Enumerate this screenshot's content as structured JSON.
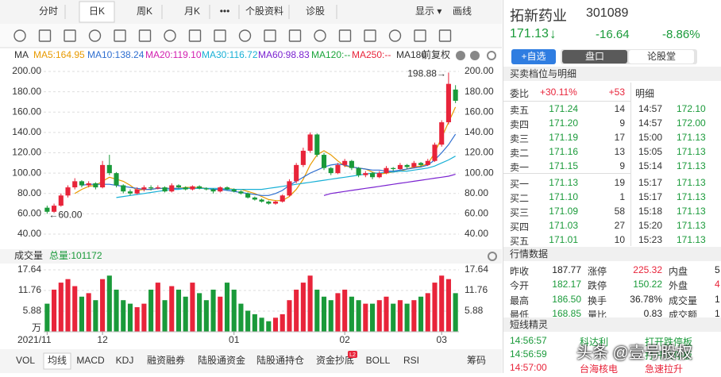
{
  "toolbar": {
    "tabs": [
      "分时",
      "日K",
      "周K",
      "月K",
      "•••",
      "个股资料",
      "诊股"
    ],
    "display": "显示 ▾",
    "draw": "画线"
  },
  "kline": {
    "ma_label": "MA",
    "ma_legend": [
      {
        "label": "MA5:164.95",
        "color": "#e89a00"
      },
      {
        "label": "MA10:138.24",
        "color": "#2f6fd0"
      },
      {
        "label": "MA20:119.10",
        "color": "#d21fb0"
      },
      {
        "label": "MA30:116.72",
        "color": "#18b0d6"
      },
      {
        "label": "MA60:98.83",
        "color": "#7a22d0"
      },
      {
        "label": "MA120:--",
        "color": "#1aa43a"
      },
      {
        "label": "MA250:--",
        "color": "#e8243a"
      },
      {
        "label": "MA180",
        "color": "#333333"
      }
    ],
    "adjust": "前复权",
    "ylim": [
      40,
      200
    ],
    "yticks": [
      {
        "value": 200,
        "label": "200.00"
      },
      {
        "value": 180,
        "label": "180.00"
      },
      {
        "value": 160,
        "label": "160.00"
      },
      {
        "value": 140,
        "label": "140.00"
      },
      {
        "value": 120,
        "label": "120.00"
      },
      {
        "value": 100,
        "label": "100.00"
      },
      {
        "value": 80,
        "label": "80.00"
      },
      {
        "value": 60,
        "label": "60.00"
      },
      {
        "value": 40,
        "label": "40.00"
      }
    ],
    "high_note": "198.88→",
    "low_note": "←60.00",
    "up_color": "#e8243a",
    "down_color": "#1a9a3a",
    "candles": [
      [
        66,
        68,
        60,
        62
      ],
      [
        62,
        70,
        61,
        68
      ],
      [
        68,
        80,
        67,
        78
      ],
      [
        78,
        88,
        76,
        86
      ],
      [
        86,
        95,
        84,
        92
      ],
      [
        92,
        93,
        86,
        88
      ],
      [
        88,
        92,
        86,
        90
      ],
      [
        90,
        91,
        84,
        86
      ],
      [
        86,
        112,
        85,
        108
      ],
      [
        108,
        118,
        98,
        100
      ],
      [
        100,
        101,
        86,
        88
      ],
      [
        88,
        89,
        80,
        82
      ],
      [
        82,
        84,
        78,
        80
      ],
      [
        80,
        86,
        79,
        84
      ],
      [
        84,
        88,
        82,
        86
      ],
      [
        86,
        88,
        83,
        85
      ],
      [
        85,
        88,
        84,
        86
      ],
      [
        86,
        87,
        81,
        82
      ],
      [
        82,
        90,
        81,
        88
      ],
      [
        88,
        89,
        85,
        86
      ],
      [
        86,
        87,
        83,
        84
      ],
      [
        84,
        88,
        83,
        87
      ],
      [
        87,
        88,
        84,
        85
      ],
      [
        85,
        86,
        83,
        84
      ],
      [
        84,
        85,
        80,
        82
      ],
      [
        82,
        87,
        81,
        86
      ],
      [
        86,
        87,
        83,
        84
      ],
      [
        84,
        85,
        81,
        82
      ],
      [
        82,
        83,
        79,
        80
      ],
      [
        80,
        81,
        75,
        76
      ],
      [
        76,
        77,
        73,
        74
      ],
      [
        74,
        75,
        71,
        72
      ],
      [
        72,
        73,
        69,
        70
      ],
      [
        70,
        73,
        69,
        72
      ],
      [
        72,
        79,
        71,
        78
      ],
      [
        78,
        94,
        77,
        92
      ],
      [
        92,
        110,
        90,
        108
      ],
      [
        108,
        125,
        106,
        122
      ],
      [
        122,
        140,
        120,
        138
      ],
      [
        138,
        139,
        116,
        118
      ],
      [
        118,
        120,
        103,
        105
      ],
      [
        105,
        106,
        98,
        100
      ],
      [
        100,
        110,
        99,
        108
      ],
      [
        108,
        114,
        106,
        112
      ],
      [
        112,
        113,
        103,
        105
      ],
      [
        105,
        106,
        96,
        98
      ],
      [
        98,
        102,
        96,
        100
      ],
      [
        100,
        101,
        94,
        96
      ],
      [
        96,
        102,
        95,
        100
      ],
      [
        100,
        107,
        99,
        105
      ],
      [
        105,
        106,
        102,
        104
      ],
      [
        104,
        110,
        103,
        108
      ],
      [
        108,
        109,
        104,
        106
      ],
      [
        106,
        112,
        105,
        110
      ],
      [
        110,
        111,
        106,
        108
      ],
      [
        108,
        114,
        107,
        112
      ],
      [
        112,
        130,
        111,
        128
      ],
      [
        128,
        152,
        126,
        150
      ],
      [
        150,
        198.88,
        148,
        187.77
      ],
      [
        182.17,
        186.5,
        168.85,
        171.13
      ]
    ],
    "ma_lines": [
      {
        "color": "#e89a00",
        "values": [
          null,
          null,
          null,
          null,
          80,
          84,
          87,
          88,
          92,
          96,
          94,
          92,
          88,
          83,
          84,
          84,
          85,
          85,
          85,
          85,
          86,
          86,
          86,
          85,
          84,
          84,
          85,
          84,
          84,
          82,
          80,
          77,
          74,
          73,
          73,
          77,
          84,
          94,
          108,
          118,
          122,
          118,
          112,
          107,
          106,
          105,
          104,
          101,
          99,
          100,
          101,
          102,
          104,
          106,
          107,
          109,
          120,
          135,
          150,
          164.95
        ]
      },
      {
        "color": "#2f6fd0",
        "values": [
          null,
          null,
          null,
          null,
          null,
          88,
          89,
          89,
          89,
          89,
          88,
          87,
          86,
          85,
          84,
          84,
          85,
          85,
          85,
          85,
          85,
          85,
          85,
          85,
          84,
          84,
          83,
          82,
          81,
          80,
          79,
          78,
          78,
          80,
          83,
          88,
          92,
          96,
          100,
          103,
          106,
          108,
          109,
          108,
          106,
          105,
          104,
          103,
          103,
          102,
          102,
          103,
          104,
          105,
          106,
          108,
          113,
          120,
          128,
          138.24
        ]
      },
      {
        "color": "#18b0d6",
        "values": [
          null,
          null,
          null,
          null,
          null,
          null,
          null,
          null,
          null,
          null,
          76,
          77,
          78,
          79,
          80,
          81,
          82,
          83,
          84,
          84,
          85,
          85,
          85,
          85,
          85,
          85,
          84,
          84,
          84,
          84,
          84,
          84,
          85,
          86,
          87,
          88,
          89,
          90,
          91,
          92,
          93,
          94,
          95,
          96,
          97,
          98,
          99,
          100,
          100,
          101,
          101,
          102,
          102,
          103,
          104,
          105,
          107,
          110,
          113,
          116.72
        ]
      },
      {
        "color": "#7a22d0",
        "values": [
          null,
          null,
          null,
          null,
          null,
          null,
          null,
          null,
          null,
          null,
          null,
          null,
          null,
          null,
          null,
          null,
          null,
          null,
          null,
          null,
          null,
          null,
          null,
          null,
          null,
          null,
          null,
          null,
          null,
          null,
          null,
          null,
          null,
          null,
          null,
          null,
          null,
          null,
          null,
          null,
          78,
          80,
          81,
          82,
          83,
          84,
          85,
          86,
          87,
          88,
          89,
          90,
          91,
          92,
          93,
          94,
          95,
          96,
          97,
          98.83
        ]
      }
    ],
    "dates": [
      "2021/11",
      null,
      null,
      null,
      null,
      null,
      null,
      null,
      "12",
      null,
      null,
      null,
      null,
      null,
      null,
      null,
      null,
      null,
      null,
      null,
      null,
      null,
      null,
      null,
      null,
      null,
      null,
      "01",
      null,
      null,
      null,
      null,
      null,
      null,
      null,
      null,
      null,
      null,
      null,
      null,
      null,
      null,
      null,
      "02",
      null,
      null,
      null,
      null,
      null,
      null,
      null,
      null,
      null,
      null,
      null,
      null,
      null,
      "03",
      null,
      null
    ]
  },
  "volume": {
    "title": "成交量",
    "total": "总量:101172",
    "ylim": [
      0,
      17.64
    ],
    "yticks": [
      17.64,
      11.76,
      5.88
    ],
    "unit": "万",
    "values": [
      8,
      12,
      14,
      15,
      13,
      10,
      11,
      9,
      15,
      16,
      12,
      9,
      8,
      7,
      8,
      12,
      14,
      9,
      13,
      12,
      10,
      14,
      11,
      9,
      12,
      10,
      14,
      12,
      8,
      6,
      5,
      4,
      3,
      4,
      5,
      9,
      12,
      14,
      16,
      12,
      10,
      9,
      11,
      12,
      10,
      9,
      8,
      8,
      9,
      10,
      8,
      9,
      8,
      9,
      10,
      11,
      14,
      16,
      15,
      11
    ]
  },
  "bottom_tabs": [
    "VOL",
    "均线",
    "MACD",
    "KDJ",
    "融资融券",
    "陆股通资金",
    "陆股通持仓",
    "资金抄底",
    "BOLL",
    "RSI",
    "筹码"
  ],
  "bottom_badge": "L2",
  "quote": {
    "name": "拓新药业",
    "code": "301089",
    "price": "171.13",
    "arrow": "↓",
    "change": "-16.64",
    "pct": "-8.86%"
  },
  "buttons": {
    "watch": "+自选",
    "tabs": [
      "盘口",
      "论股堂"
    ]
  },
  "book": {
    "title": "买卖档位与明细",
    "ratio_label": "委比",
    "ratio": "+30.11%",
    "diff": "+53",
    "detail": "明细",
    "levels": [
      [
        "卖五",
        "171.24",
        "14"
      ],
      [
        "卖四",
        "171.20",
        "9"
      ],
      [
        "卖三",
        "171.19",
        "17"
      ],
      [
        "卖二",
        "171.16",
        "13"
      ],
      [
        "卖一",
        "171.15",
        "9"
      ],
      [
        "买一",
        "171.13",
        "19"
      ],
      [
        "买二",
        "171.10",
        "1"
      ],
      [
        "买三",
        "171.09",
        "58"
      ],
      [
        "买四",
        "171.03",
        "27"
      ],
      [
        "买五",
        "171.01",
        "10"
      ]
    ],
    "ticks": [
      [
        "14:57",
        "172.10"
      ],
      [
        "14:57",
        "172.00"
      ],
      [
        "15:00",
        "171.13"
      ],
      [
        "15:05",
        "171.13"
      ],
      [
        "15:14",
        "171.13"
      ],
      [
        "15:17",
        "171.13"
      ],
      [
        "15:17",
        "171.13"
      ],
      [
        "15:18",
        "171.13"
      ],
      [
        "15:20",
        "171.13"
      ],
      [
        "15:23",
        "171.13"
      ]
    ]
  },
  "stats": {
    "title": "行情数据",
    "rows": [
      {
        "cells": [
          "昨收",
          "187.77",
          "涨停",
          "225.32",
          "内盘",
          "5"
        ],
        "colors": [
          "#333",
          "#222",
          "#333",
          "#e8243a",
          "#333",
          "#222"
        ]
      },
      {
        "cells": [
          "今开",
          "182.17",
          "跌停",
          "150.22",
          "外盘",
          "4"
        ],
        "colors": [
          "#333",
          "#1a9a3a",
          "#333",
          "#1a9a3a",
          "#333",
          "#e8243a"
        ]
      },
      {
        "cells": [
          "最高",
          "186.50",
          "换手",
          "36.78%",
          "成交量",
          "1"
        ],
        "colors": [
          "#333",
          "#1a9a3a",
          "#333",
          "#222",
          "#333",
          "#222"
        ]
      },
      {
        "cells": [
          "最低",
          "168.85",
          "量比",
          "0.83",
          "成交额",
          "1"
        ],
        "colors": [
          "#333",
          "#1a9a3a",
          "#333",
          "#222",
          "#333",
          "#222"
        ]
      }
    ]
  },
  "elf": {
    "title": "短线精灵",
    "rows": [
      {
        "cells": [
          "14:56:57",
          "科达利",
          "打开跌停板"
        ],
        "color": "#1a9a3a"
      },
      {
        "cells": [
          "14:56:59",
          "打开跌停板"
        ],
        "color": "#1a9a3a"
      },
      {
        "cells": [
          "14:57:00",
          "台海核电",
          "急速拉升"
        ],
        "color": "#e8243a"
      }
    ]
  },
  "watermark": "头条 @壹号股权"
}
